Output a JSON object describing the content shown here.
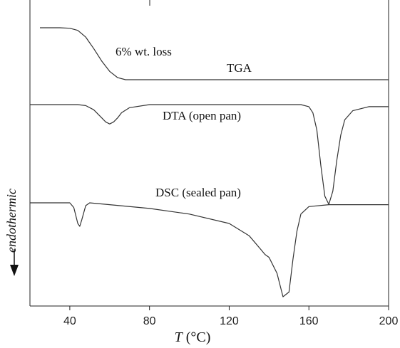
{
  "chart_data": {
    "type": "line",
    "xlabel_var": "T",
    "xlabel_unit": "(°C)",
    "xlim": [
      20,
      200
    ],
    "ticks": [
      40,
      80,
      120,
      160,
      200
    ],
    "y_axis_label": "endothermic",
    "annotations": [
      {
        "text": "6% wt. loss"
      }
    ],
    "series": [
      {
        "name": "TGA",
        "x": [
          25,
          35,
          40,
          44,
          48,
          52,
          56,
          60,
          64,
          68,
          72,
          80,
          100,
          120,
          140,
          160,
          180,
          200
        ],
        "y": [
          1.0,
          1.0,
          0.99,
          0.95,
          0.82,
          0.6,
          0.36,
          0.16,
          0.04,
          0.0,
          0.0,
          0.0,
          0.0,
          0.0,
          0.0,
          0.0,
          0.0,
          0.0
        ]
      },
      {
        "name": "DTA (open pan)",
        "x": [
          20,
          44,
          48,
          52,
          56,
          58,
          60,
          62,
          64,
          66,
          70,
          80,
          100,
          120,
          140,
          156,
          160,
          162,
          164,
          166,
          168,
          170,
          172,
          174,
          176,
          178,
          182,
          190,
          200
        ],
        "y": [
          0.0,
          0.0,
          -0.01,
          -0.05,
          -0.13,
          -0.17,
          -0.19,
          -0.17,
          -0.13,
          -0.08,
          -0.03,
          0.0,
          0.0,
          0.0,
          0.0,
          0.0,
          -0.02,
          -0.08,
          -0.25,
          -0.6,
          -0.9,
          -0.98,
          -0.85,
          -0.55,
          -0.3,
          -0.15,
          -0.06,
          -0.02,
          -0.02
        ]
      },
      {
        "name": "DSC (sealed pan)",
        "x": [
          20,
          40,
          42,
          44,
          45,
          46,
          48,
          50,
          60,
          80,
          100,
          120,
          130,
          136,
          138,
          140,
          144,
          147,
          150,
          152,
          154,
          156,
          160,
          170,
          180,
          200
        ],
        "y": [
          0.0,
          0.0,
          -0.05,
          -0.22,
          -0.25,
          -0.18,
          -0.03,
          0.0,
          -0.02,
          -0.06,
          -0.12,
          -0.22,
          -0.35,
          -0.5,
          -0.55,
          -0.58,
          -0.75,
          -1.0,
          -0.95,
          -0.6,
          -0.3,
          -0.12,
          -0.04,
          -0.02,
          -0.02,
          -0.02
        ]
      }
    ]
  }
}
